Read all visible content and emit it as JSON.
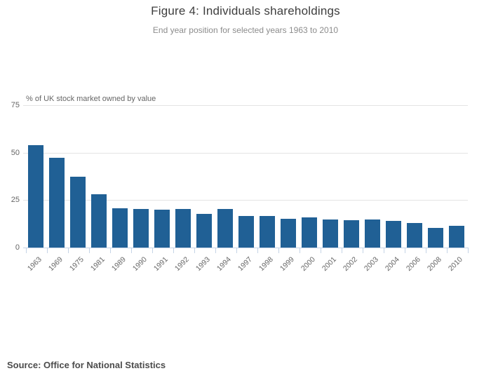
{
  "header": {
    "title": "Figure 4: Individuals shareholdings",
    "subtitle": "End year position for selected years 1963 to 2010"
  },
  "chart_data": {
    "type": "bar",
    "title": "Figure 4: Individuals shareholdings",
    "subtitle": "End year position for selected years 1963 to 2010",
    "ylabel": "% of UK stock market owned by value",
    "xlabel": "",
    "categories": [
      "1963",
      "1969",
      "1975",
      "1981",
      "1989",
      "1990",
      "1991",
      "1992",
      "1993",
      "1994",
      "1997",
      "1998",
      "1999",
      "2000",
      "2001",
      "2002",
      "2003",
      "2004",
      "2006",
      "2008",
      "2010"
    ],
    "values": [
      54.0,
      47.4,
      37.5,
      28.2,
      20.6,
      20.3,
      19.9,
      20.4,
      17.7,
      20.3,
      16.5,
      16.7,
      15.3,
      16.0,
      14.8,
      14.3,
      14.9,
      14.1,
      12.8,
      10.2,
      11.5
    ],
    "ylim": [
      0,
      75
    ],
    "yticks": [
      0,
      25,
      50,
      75
    ],
    "grid": true,
    "legend": false,
    "bar_color": "#206095",
    "gridline_color": "#e4e4e4",
    "axis_color": "#c5d4e6"
  },
  "footer": {
    "source": "Source: Office for National Statistics"
  }
}
